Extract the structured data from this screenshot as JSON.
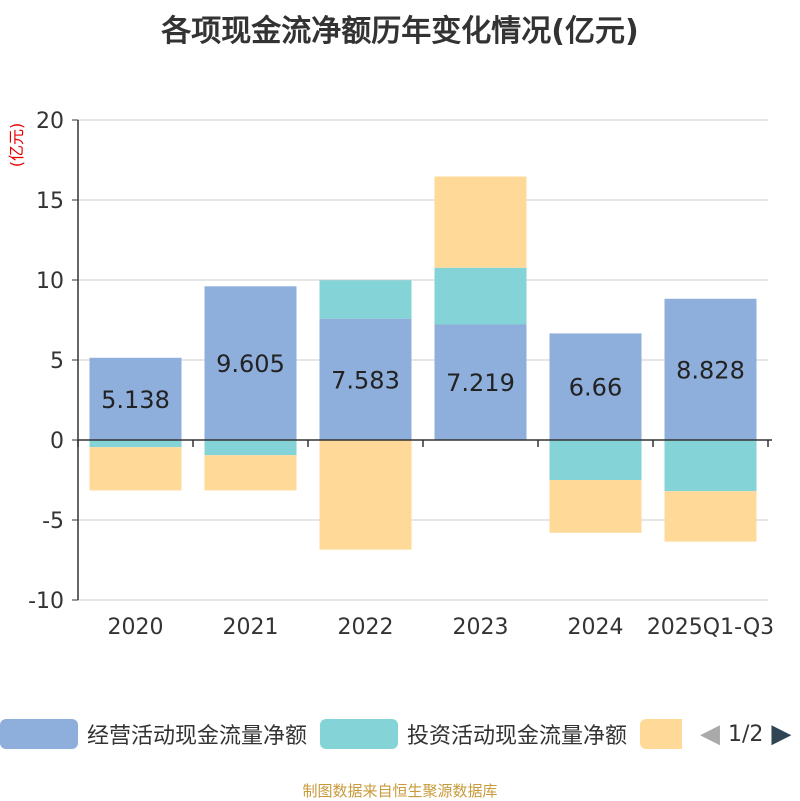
{
  "title": "各项现金流净额历年变化情况(亿元)",
  "footer": "制图数据来自恒生聚源数据库",
  "chart_data": {
    "type": "bar",
    "stacked": true,
    "ylabel": "(亿元)",
    "ylim": [
      -10,
      20
    ],
    "yticks": [
      20,
      15,
      10,
      5,
      0,
      -5,
      -10
    ],
    "categories": [
      "2020",
      "2021",
      "2022",
      "2023",
      "2024",
      "2025Q1-Q3"
    ],
    "series": [
      {
        "name": "经营活动现金流量净额",
        "color": "#8eaedb",
        "values": [
          5.138,
          9.605,
          7.583,
          7.219,
          6.66,
          8.828
        ],
        "labels": [
          "5.138",
          "9.605",
          "7.583",
          "7.219",
          "6.66",
          "8.828"
        ]
      },
      {
        "name": "投资活动现金流量净额",
        "color": "#84d3d6",
        "values": [
          -0.45,
          -0.95,
          2.4,
          3.55,
          -2.5,
          -3.2
        ]
      },
      {
        "name": "",
        "color": "#fed998",
        "values": [
          -2.7,
          -2.2,
          -6.85,
          5.7,
          -3.3,
          -3.15
        ]
      }
    ],
    "legend_position": "bottom"
  },
  "pager": {
    "prev": "◀",
    "text": "1/2",
    "next": "▶"
  }
}
